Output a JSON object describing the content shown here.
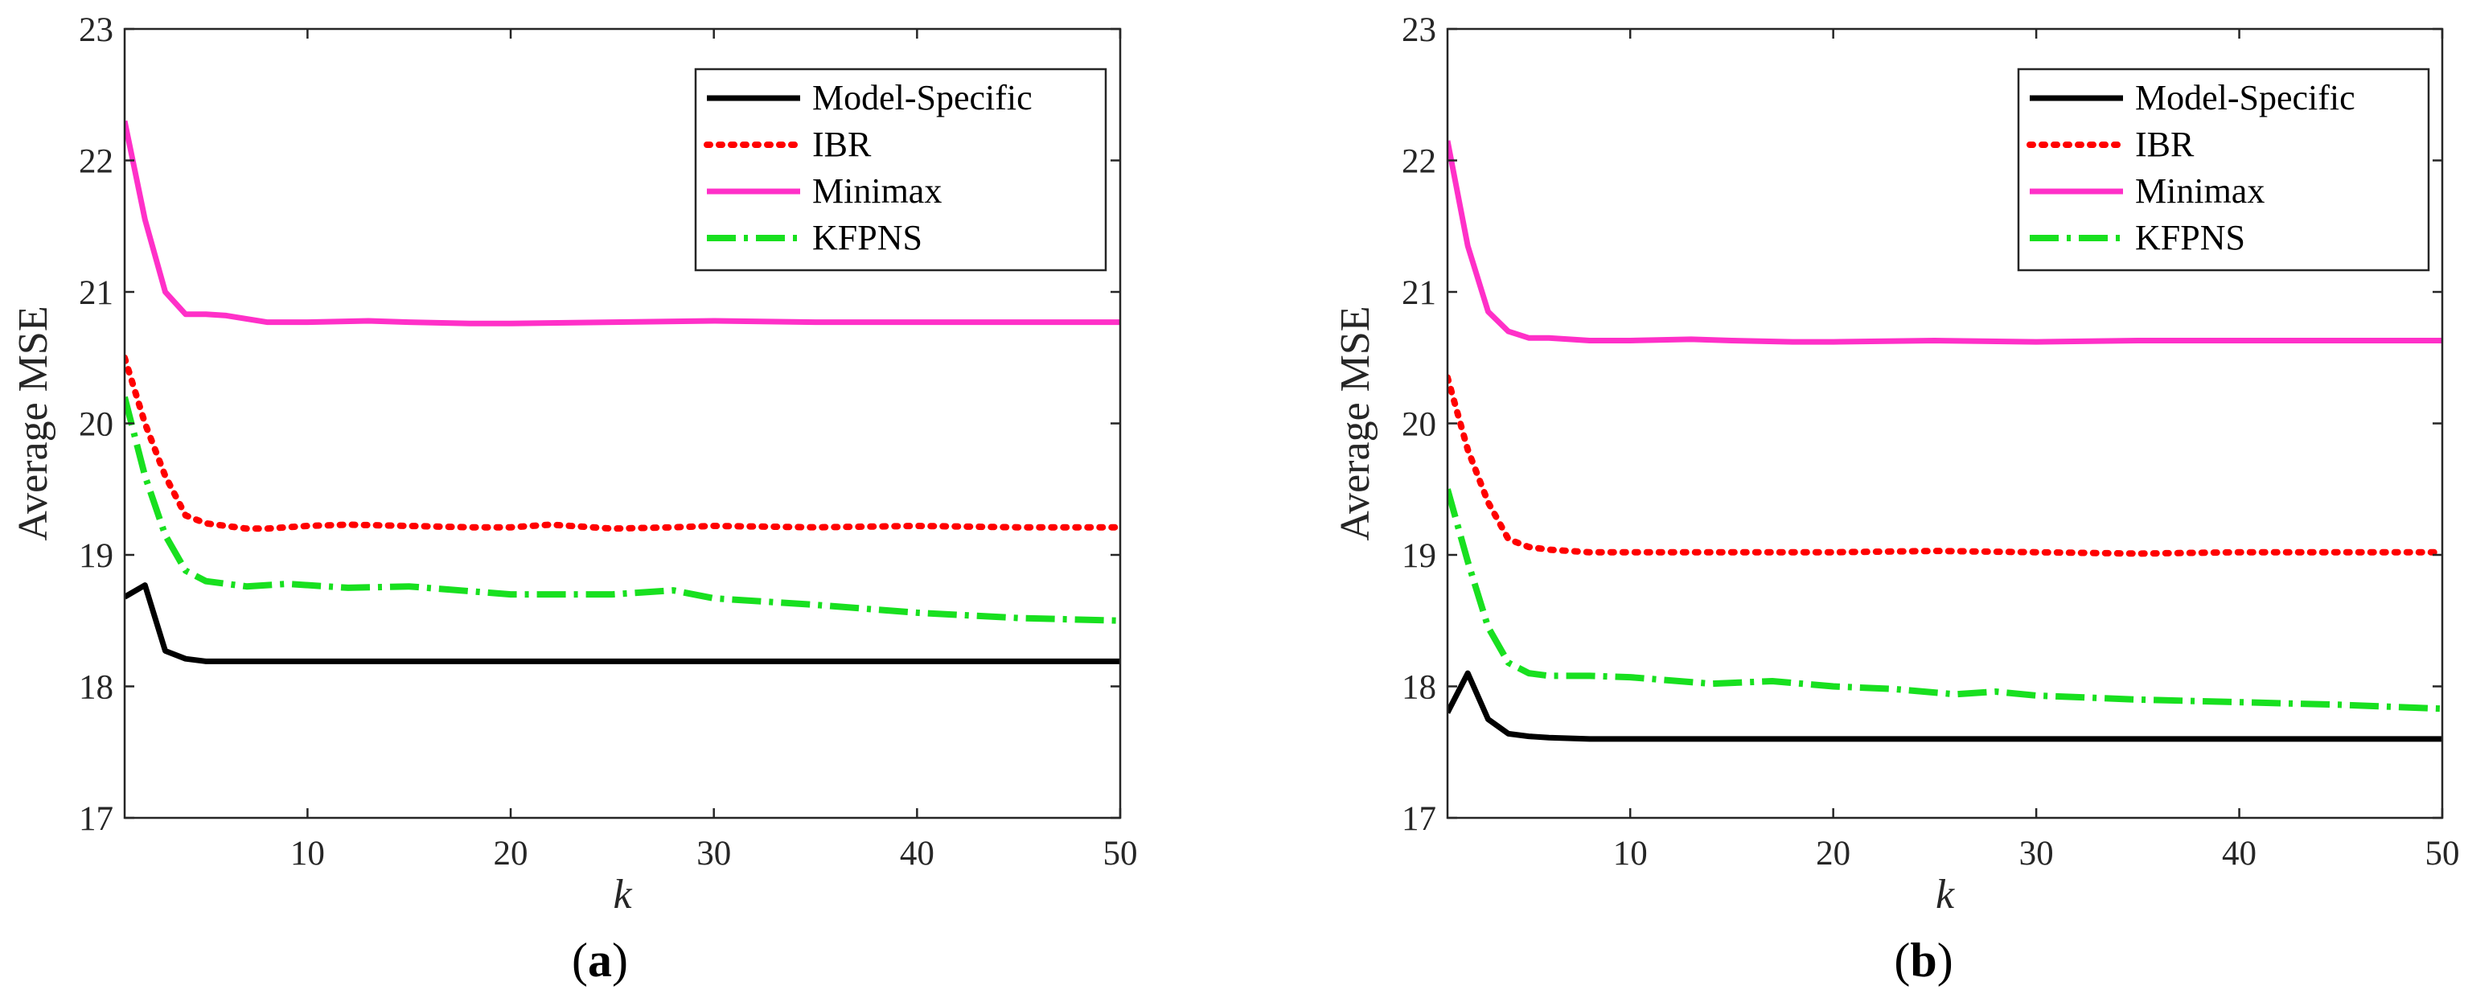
{
  "chart_data": [
    {
      "type": "line",
      "panel": "a",
      "caption": {
        "open": "(",
        "letter": "a",
        "close": ")"
      },
      "xlabel": "k",
      "ylabel": "Average MSE",
      "xlim": [
        1,
        50
      ],
      "ylim": [
        17,
        23
      ],
      "xticks": [
        10,
        20,
        30,
        40,
        50
      ],
      "yticks": [
        17,
        18,
        19,
        20,
        21,
        22,
        23
      ],
      "grid": false,
      "legend_position": "top-right",
      "series": [
        {
          "name": "Model-Specific",
          "color": "#000000",
          "style": "solid",
          "x": [
            1,
            2,
            3,
            4,
            5,
            6,
            8,
            10,
            15,
            20,
            25,
            30,
            35,
            40,
            45,
            50
          ],
          "y": [
            18.68,
            18.77,
            18.27,
            18.21,
            18.19,
            18.19,
            18.19,
            18.19,
            18.19,
            18.19,
            18.19,
            18.19,
            18.19,
            18.19,
            18.19,
            18.19
          ]
        },
        {
          "name": "IBR",
          "color": "#ff0000",
          "style": "dotted",
          "x": [
            1,
            2,
            3,
            4,
            5,
            6,
            7,
            8,
            10,
            12,
            15,
            18,
            20,
            22,
            25,
            28,
            30,
            35,
            40,
            45,
            50
          ],
          "y": [
            20.5,
            20.0,
            19.6,
            19.3,
            19.24,
            19.22,
            19.2,
            19.2,
            19.22,
            19.23,
            19.22,
            19.21,
            19.21,
            19.23,
            19.2,
            19.21,
            19.22,
            19.21,
            19.22,
            19.21,
            19.21
          ]
        },
        {
          "name": "Minimax",
          "color": "#ff30c8",
          "style": "solid",
          "x": [
            1,
            2,
            3,
            4,
            5,
            6,
            8,
            10,
            13,
            15,
            18,
            20,
            25,
            30,
            35,
            40,
            45,
            50
          ],
          "y": [
            22.3,
            21.55,
            21.0,
            20.83,
            20.83,
            20.82,
            20.77,
            20.77,
            20.78,
            20.77,
            20.76,
            20.76,
            20.77,
            20.78,
            20.77,
            20.77,
            20.77,
            20.77
          ]
        },
        {
          "name": "KFPNS",
          "color": "#18e01f",
          "style": "dashdot",
          "x": [
            1,
            2,
            3,
            4,
            5,
            7,
            9,
            12,
            15,
            20,
            25,
            28,
            30,
            35,
            40,
            45,
            50
          ],
          "y": [
            20.2,
            19.6,
            19.15,
            18.88,
            18.8,
            18.76,
            18.78,
            18.75,
            18.76,
            18.7,
            18.7,
            18.73,
            18.67,
            18.62,
            18.56,
            18.52,
            18.5
          ]
        }
      ]
    },
    {
      "type": "line",
      "panel": "b",
      "caption": {
        "open": "(",
        "letter": "b",
        "close": ")"
      },
      "xlabel": "k",
      "ylabel": "Average MSE",
      "xlim": [
        1,
        50
      ],
      "ylim": [
        17,
        23
      ],
      "xticks": [
        10,
        20,
        30,
        40,
        50
      ],
      "yticks": [
        17,
        18,
        19,
        20,
        21,
        22,
        23
      ],
      "grid": false,
      "legend_position": "top-right",
      "series": [
        {
          "name": "Model-Specific",
          "color": "#000000",
          "style": "solid",
          "x": [
            1,
            2,
            3,
            4,
            5,
            6,
            8,
            10,
            15,
            20,
            25,
            30,
            35,
            40,
            45,
            50
          ],
          "y": [
            17.8,
            18.1,
            17.75,
            17.64,
            17.62,
            17.61,
            17.6,
            17.6,
            17.6,
            17.6,
            17.6,
            17.6,
            17.6,
            17.6,
            17.6,
            17.6
          ]
        },
        {
          "name": "IBR",
          "color": "#ff0000",
          "style": "dotted",
          "x": [
            1,
            2,
            3,
            4,
            5,
            6,
            8,
            10,
            15,
            20,
            25,
            30,
            35,
            40,
            45,
            50
          ],
          "y": [
            20.35,
            19.8,
            19.4,
            19.12,
            19.06,
            19.04,
            19.02,
            19.02,
            19.02,
            19.02,
            19.03,
            19.02,
            19.01,
            19.02,
            19.02,
            19.02
          ]
        },
        {
          "name": "Minimax",
          "color": "#ff30c8",
          "style": "solid",
          "x": [
            1,
            2,
            3,
            4,
            5,
            6,
            8,
            10,
            13,
            15,
            18,
            20,
            25,
            30,
            35,
            40,
            45,
            50
          ],
          "y": [
            22.15,
            21.35,
            20.85,
            20.7,
            20.65,
            20.65,
            20.63,
            20.63,
            20.64,
            20.63,
            20.62,
            20.62,
            20.63,
            20.62,
            20.63,
            20.63,
            20.63,
            20.63
          ]
        },
        {
          "name": "KFPNS",
          "color": "#18e01f",
          "style": "dashdot",
          "x": [
            1,
            2,
            3,
            4,
            5,
            6,
            8,
            10,
            14,
            17,
            20,
            23,
            26,
            28,
            30,
            35,
            40,
            45,
            50
          ],
          "y": [
            19.5,
            18.95,
            18.45,
            18.18,
            18.1,
            18.08,
            18.08,
            18.07,
            18.02,
            18.04,
            18.0,
            17.98,
            17.94,
            17.96,
            17.93,
            17.9,
            17.88,
            17.86,
            17.83
          ]
        }
      ]
    }
  ]
}
